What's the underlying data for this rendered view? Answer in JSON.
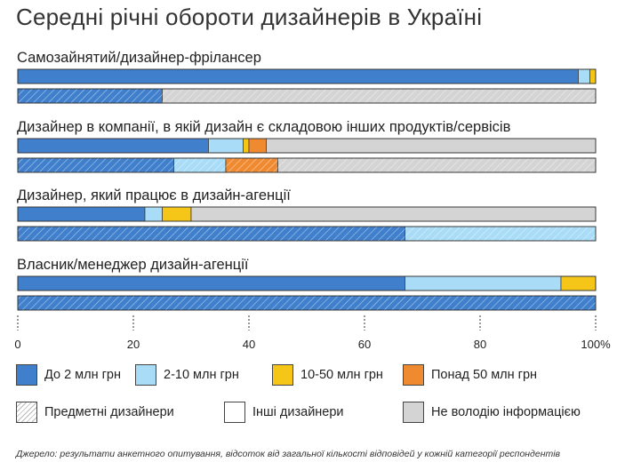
{
  "title": "Середні річні обороти дизайнерів в Україні",
  "source": "Джерело: результати анкетного опитування, відсоток від загальної кількості відповідей у кожній категорії респондентів",
  "colors": {
    "up_to_2m": "#3f7fcc",
    "from_2_to_10m": "#a9dcf7",
    "from_10_to_50m": "#f5c518",
    "over_50m": "#f08a30",
    "no_info": "#d4d4d4"
  },
  "legend": {
    "up_to_2m": "До 2 млн грн",
    "from_2_to_10m": "2-10 млн грн",
    "from_10_to_50m": "10-50 млн грн",
    "over_50m": "Понад 50 млн грн",
    "subject_designers": "Предметні дизайнери",
    "other_designers": "Інші дизайнери",
    "no_info": "Не володію інформацією"
  },
  "chart_data": {
    "type": "bar",
    "orientation": "horizontal",
    "stacked": true,
    "x_ticks": [
      "0",
      "20",
      "40",
      "60",
      "80",
      "100%"
    ],
    "xlim": [
      0,
      100
    ],
    "grid": true,
    "categories": [
      "Самозайнятий/дизайнер-фрілансер",
      "Дизайнер в компанії, в якій дизайн є складовою інших продуктів/сервісів",
      "Дизайнер, який працює в дизайн-агенції",
      "Власник/менеджер дизайн-агенції"
    ],
    "segments": [
      "До 2 млн грн",
      "2-10 млн грн",
      "10-50 млн грн",
      "Понад 50 млн грн",
      "Не володію інформацією"
    ],
    "series": [
      {
        "name": "Інші дизайнери",
        "values": [
          [
            97,
            2,
            1,
            0,
            0
          ],
          [
            33,
            6,
            1,
            3,
            57
          ],
          [
            22,
            3,
            5,
            0,
            70
          ],
          [
            67,
            27,
            6,
            0,
            0
          ]
        ]
      },
      {
        "name": "Предметні дизайнери",
        "values": [
          [
            25,
            0,
            0,
            0,
            75
          ],
          [
            27,
            9,
            0,
            9,
            55
          ],
          [
            67,
            33,
            0,
            0,
            0
          ],
          [
            100,
            0,
            0,
            0,
            0
          ]
        ]
      }
    ]
  }
}
